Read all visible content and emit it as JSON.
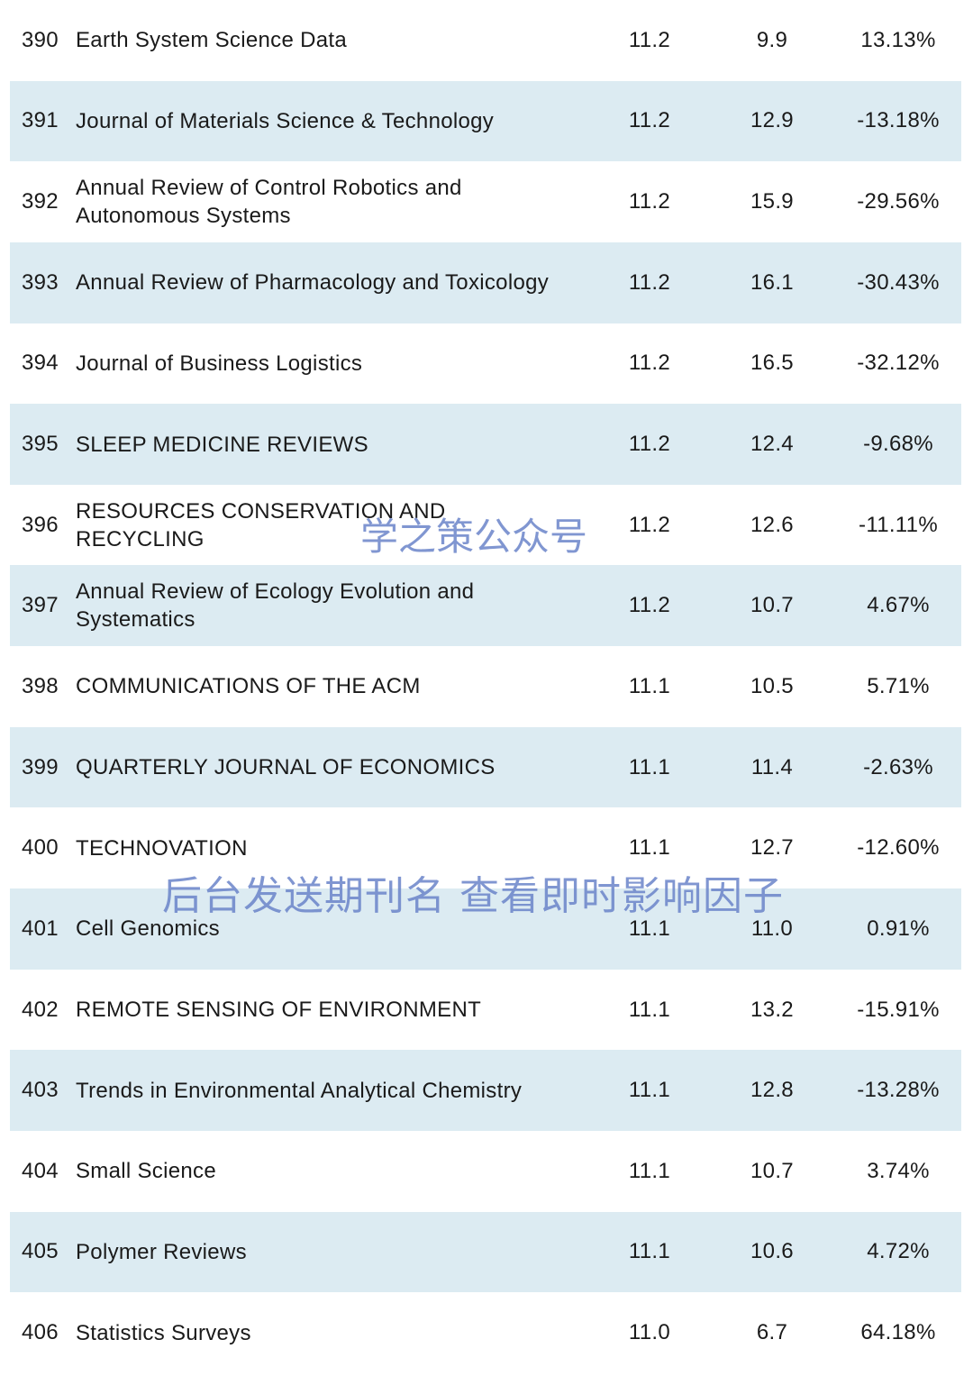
{
  "rows": [
    {
      "rank": "390",
      "name": "Earth System Science Data",
      "if_current": "11.2",
      "if_previous": "9.9",
      "change": "13.13%"
    },
    {
      "rank": "391",
      "name": "Journal of Materials Science & Technology",
      "if_current": "11.2",
      "if_previous": "12.9",
      "change": "-13.18%"
    },
    {
      "rank": "392",
      "name": "Annual Review of Control Robotics and Autonomous Systems",
      "if_current": "11.2",
      "if_previous": "15.9",
      "change": "-29.56%"
    },
    {
      "rank": "393",
      "name": "Annual Review of Pharmacology and Toxicology",
      "if_current": "11.2",
      "if_previous": "16.1",
      "change": "-30.43%"
    },
    {
      "rank": "394",
      "name": "Journal of Business Logistics",
      "if_current": "11.2",
      "if_previous": "16.5",
      "change": "-32.12%"
    },
    {
      "rank": "395",
      "name": "SLEEP MEDICINE REVIEWS",
      "if_current": "11.2",
      "if_previous": "12.4",
      "change": "-9.68%"
    },
    {
      "rank": "396",
      "name": "RESOURCES CONSERVATION AND RECYCLING",
      "if_current": "11.2",
      "if_previous": "12.6",
      "change": "-11.11%"
    },
    {
      "rank": "397",
      "name": "Annual Review of Ecology Evolution and Systematics",
      "if_current": "11.2",
      "if_previous": "10.7",
      "change": "4.67%"
    },
    {
      "rank": "398",
      "name": "COMMUNICATIONS OF THE ACM",
      "if_current": "11.1",
      "if_previous": "10.5",
      "change": "5.71%"
    },
    {
      "rank": "399",
      "name": "QUARTERLY JOURNAL OF ECONOMICS",
      "if_current": "11.1",
      "if_previous": "11.4",
      "change": "-2.63%"
    },
    {
      "rank": "400",
      "name": "TECHNOVATION",
      "if_current": "11.1",
      "if_previous": "12.7",
      "change": "-12.60%"
    },
    {
      "rank": "401",
      "name": "Cell Genomics",
      "if_current": "11.1",
      "if_previous": "11.0",
      "change": "0.91%"
    },
    {
      "rank": "402",
      "name": "REMOTE SENSING OF ENVIRONMENT",
      "if_current": "11.1",
      "if_previous": "13.2",
      "change": "-15.91%"
    },
    {
      "rank": "403",
      "name": "Trends in Environmental Analytical Chemistry",
      "if_current": "11.1",
      "if_previous": "12.8",
      "change": "-13.28%"
    },
    {
      "rank": "404",
      "name": "Small Science",
      "if_current": "11.1",
      "if_previous": "10.7",
      "change": "3.74%"
    },
    {
      "rank": "405",
      "name": "Polymer Reviews",
      "if_current": "11.1",
      "if_previous": "10.6",
      "change": "4.72%"
    },
    {
      "rank": "406",
      "name": "Statistics Surveys",
      "if_current": "11.0",
      "if_previous": "6.7",
      "change": "64.18%"
    }
  ],
  "watermarks": {
    "account": "学之策公众号",
    "promo": "后台发送期刊名 查看即时影响因子"
  }
}
